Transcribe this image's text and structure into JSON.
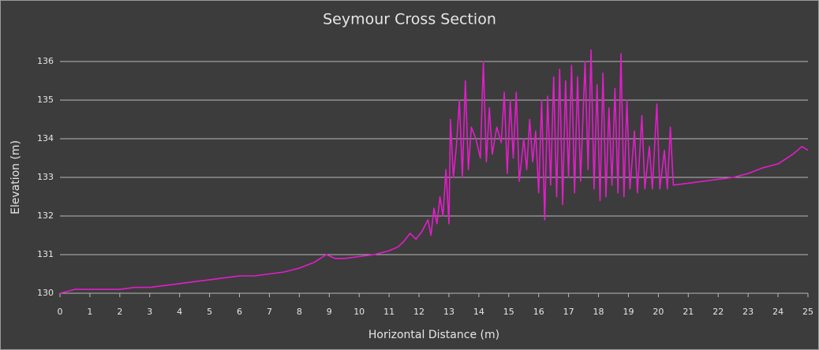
{
  "chart_data": {
    "type": "line",
    "title": "Seymour Cross Section",
    "x_label": "Horizontal Distance (m)",
    "y_label": "Elevation (m)",
    "xlim": [
      0,
      25
    ],
    "ylim": [
      130,
      136
    ],
    "xticks": [
      0,
      1,
      2,
      3,
      4,
      5,
      6,
      7,
      8,
      9,
      10,
      11,
      12,
      13,
      14,
      15,
      16,
      17,
      18,
      19,
      20,
      21,
      22,
      23,
      24,
      25
    ],
    "yticks": [
      130,
      131,
      132,
      133,
      134,
      135,
      136
    ],
    "grid": true,
    "series": [
      {
        "name": "Elevation",
        "color": "#e41ccb",
        "x": [
          0,
          0.5,
          1,
          1.5,
          2,
          2.5,
          3,
          3.5,
          4,
          4.5,
          5,
          5.5,
          6,
          6.5,
          7,
          7.5,
          8,
          8.5,
          8.9,
          9.2,
          9.5,
          10,
          10.5,
          11,
          11.3,
          11.5,
          11.7,
          11.9,
          12.1,
          12.3,
          12.4,
          12.5,
          12.6,
          12.7,
          12.8,
          12.9,
          13.0,
          13.05,
          13.15,
          13.25,
          13.35,
          13.45,
          13.55,
          13.65,
          13.75,
          13.9,
          14.05,
          14.15,
          14.25,
          14.35,
          14.45,
          14.6,
          14.75,
          14.85,
          14.95,
          15.05,
          15.15,
          15.25,
          15.35,
          15.5,
          15.6,
          15.7,
          15.8,
          15.9,
          16.0,
          16.1,
          16.2,
          16.3,
          16.4,
          16.5,
          16.6,
          16.7,
          16.8,
          16.9,
          17.0,
          17.1,
          17.2,
          17.3,
          17.4,
          17.55,
          17.65,
          17.75,
          17.85,
          17.95,
          18.05,
          18.15,
          18.25,
          18.35,
          18.45,
          18.55,
          18.65,
          18.75,
          18.85,
          18.95,
          19.05,
          19.2,
          19.3,
          19.45,
          19.55,
          19.7,
          19.8,
          19.95,
          20.05,
          20.2,
          20.3,
          20.4,
          20.5,
          21,
          21.5,
          22,
          22.5,
          23,
          23.5,
          24,
          24.5,
          24.8,
          25
        ],
        "values": [
          130.0,
          130.1,
          130.1,
          130.1,
          130.1,
          130.15,
          130.15,
          130.2,
          130.25,
          130.3,
          130.35,
          130.4,
          130.45,
          130.45,
          130.5,
          130.55,
          130.65,
          130.8,
          131.0,
          130.9,
          130.9,
          130.95,
          131.0,
          131.1,
          131.2,
          131.35,
          131.55,
          131.4,
          131.6,
          131.9,
          131.5,
          132.2,
          131.8,
          132.5,
          132.0,
          133.2,
          131.8,
          134.5,
          133.0,
          133.8,
          135.0,
          133.0,
          135.5,
          133.2,
          134.3,
          134.0,
          133.5,
          136.0,
          133.4,
          134.8,
          133.6,
          134.3,
          133.9,
          135.2,
          133.1,
          135.0,
          133.5,
          135.2,
          132.9,
          134.0,
          133.2,
          134.5,
          133.4,
          134.2,
          132.6,
          135.0,
          131.9,
          135.1,
          132.8,
          135.6,
          132.5,
          135.8,
          132.3,
          135.5,
          133.0,
          135.9,
          132.6,
          135.6,
          132.9,
          136.0,
          133.2,
          136.3,
          132.7,
          135.4,
          132.4,
          135.7,
          132.5,
          134.8,
          132.8,
          135.3,
          132.6,
          136.2,
          132.5,
          135.0,
          132.7,
          134.2,
          132.6,
          134.6,
          132.7,
          133.8,
          132.7,
          134.9,
          132.7,
          133.7,
          132.7,
          134.3,
          132.8,
          132.85,
          132.9,
          132.95,
          133.0,
          133.1,
          133.25,
          133.35,
          133.6,
          133.8,
          133.7
        ]
      }
    ]
  }
}
